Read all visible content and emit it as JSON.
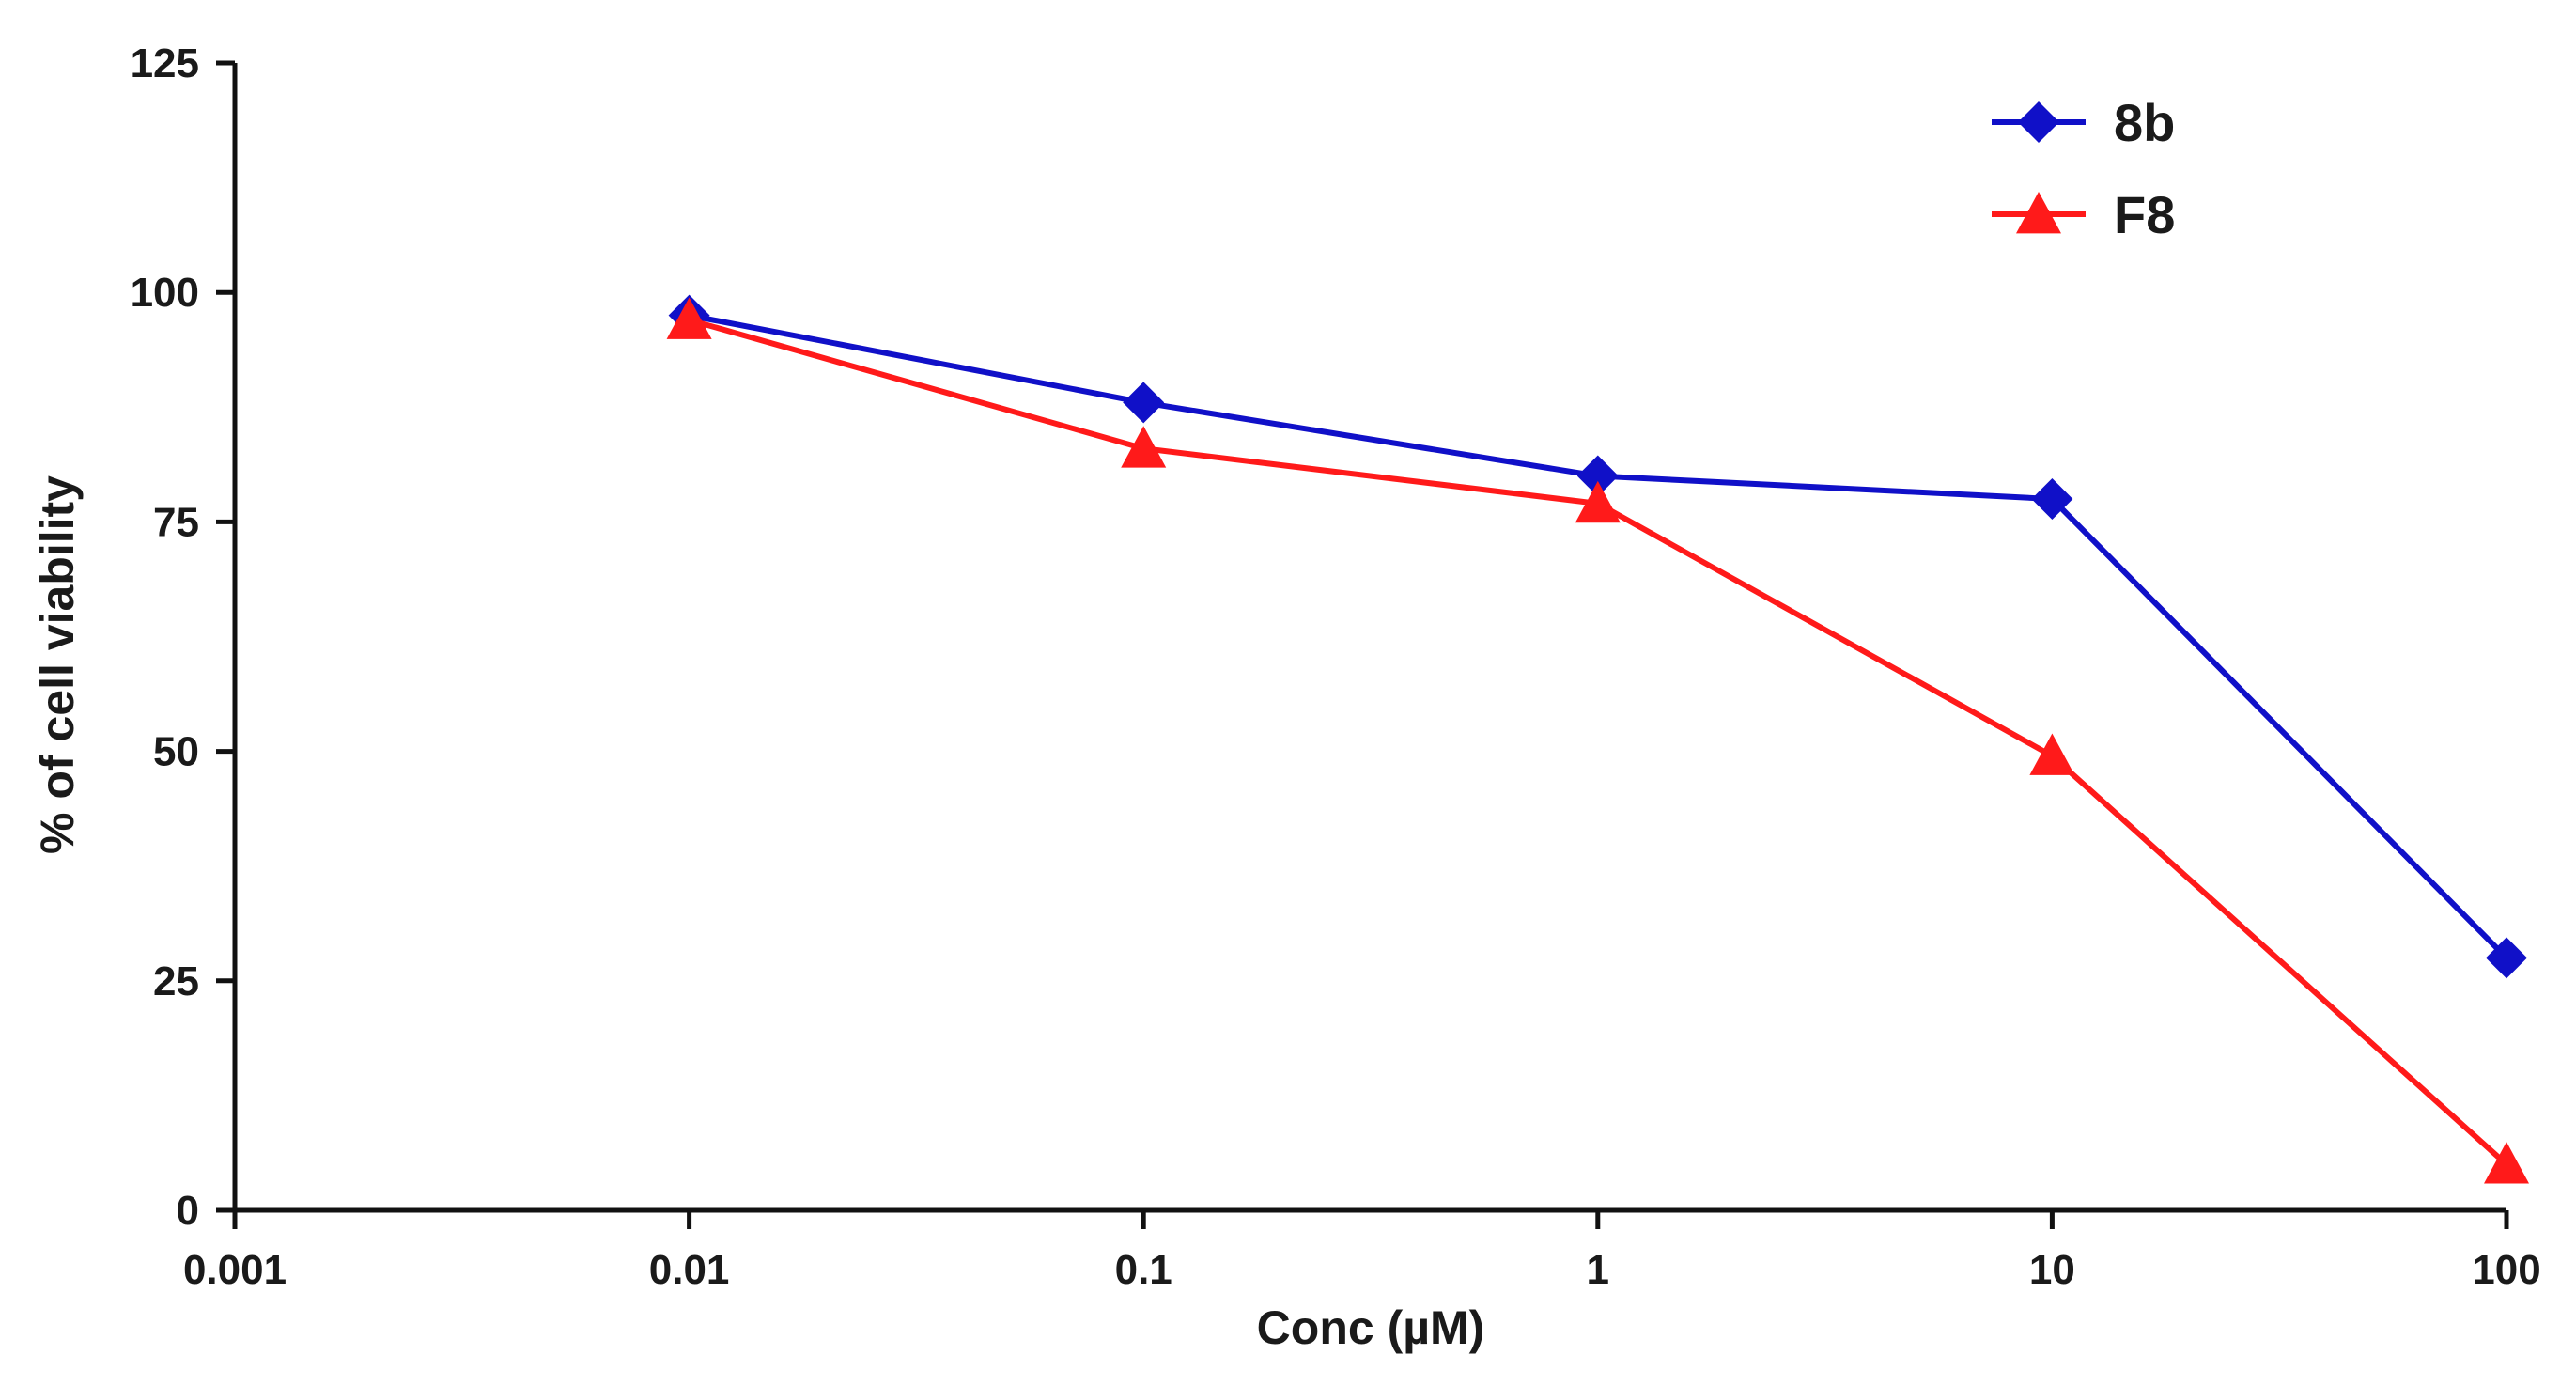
{
  "chart_data": {
    "type": "line",
    "title": "",
    "xlabel": "Conc (µM)",
    "ylabel": "% of cell viability",
    "xscale": "log",
    "xlim": [
      0.001,
      100
    ],
    "ylim": [
      0,
      125
    ],
    "grid": false,
    "legend_position": "top-right",
    "x_ticks": [
      0.001,
      0.01,
      0.1,
      1,
      10,
      100
    ],
    "x_tick_labels": [
      "0.001",
      "0.01",
      "0.1",
      "1",
      "10",
      "100"
    ],
    "y_ticks": [
      0,
      25,
      50,
      75,
      100,
      125
    ],
    "y_tick_labels": [
      "0",
      "25",
      "50",
      "75",
      "100",
      "125"
    ],
    "x": [
      0.01,
      0.1,
      1,
      10,
      100
    ],
    "series": [
      {
        "name": "8b",
        "marker": "diamond",
        "color": "#1010c8",
        "values": [
          97.5,
          88,
          80,
          77.5,
          27.5
        ]
      },
      {
        "name": "F8",
        "marker": "triangle",
        "color": "#ff1a1a",
        "values": [
          97,
          83,
          77,
          49.5,
          5
        ]
      }
    ]
  }
}
